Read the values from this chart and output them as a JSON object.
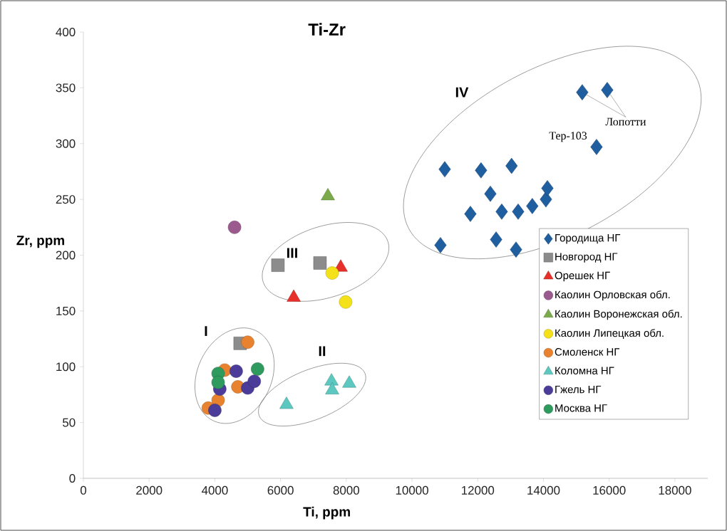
{
  "chart_data": {
    "type": "scatter",
    "title": "Ti-Zr",
    "xlabel": "Ti, ppm",
    "ylabel": "Zr, ppm",
    "xlim": [
      0,
      19000
    ],
    "ylim": [
      0,
      400
    ],
    "xticks": [
      0,
      2000,
      4000,
      6000,
      8000,
      10000,
      12000,
      14000,
      16000,
      18000
    ],
    "yticks": [
      0,
      50,
      100,
      150,
      200,
      250,
      300,
      350,
      400
    ],
    "legend": "bottom right",
    "series": [
      {
        "name": "Городища НГ",
        "marker": "diamond",
        "color": "#1f5fa0",
        "x": [
          10996,
          10865,
          12100,
          11776,
          12384,
          13030,
          12560,
          12730,
          13230,
          13165,
          13660,
          14075,
          14120,
          15615,
          15180,
          15940
        ],
        "values": [
          277,
          209,
          276,
          237,
          255,
          280,
          214,
          239,
          239,
          205,
          244,
          250,
          260,
          297,
          346,
          348
        ]
      },
      {
        "name": "Новгород НГ",
        "marker": "square",
        "color": "#8c8c8c",
        "x": [
          4770,
          5920,
          7200
        ],
        "values": [
          121,
          191,
          193
        ]
      },
      {
        "name": "Орешек НГ",
        "marker": "triangle",
        "color": "#e8302a",
        "x": [
          6400,
          7830
        ],
        "values": [
          162,
          189
        ]
      },
      {
        "name": "Каолин Орловская обл.",
        "marker": "circle",
        "color": "#9b5a8e",
        "x": [
          4600
        ],
        "values": [
          225
        ]
      },
      {
        "name": "Каолин Воронежская обл.",
        "marker": "triangle",
        "color": "#7aaa4a",
        "x": [
          7440
        ],
        "values": [
          253
        ]
      },
      {
        "name": "Каолин Липецкая обл.",
        "marker": "circle",
        "color": "#f5e11a",
        "x": [
          7570,
          7980
        ],
        "values": [
          184,
          158
        ]
      },
      {
        "name": "Смоленск НГ",
        "marker": "circle",
        "color": "#e8822e",
        "x": [
          3800,
          4100,
          4300,
          4700,
          5000
        ],
        "values": [
          63,
          70,
          97,
          82,
          122
        ]
      },
      {
        "name": "Коломна НГ",
        "marker": "triangle",
        "color": "#5cc8c0",
        "x": [
          6180,
          7550,
          7570,
          8090
        ],
        "values": [
          66,
          87,
          79,
          85
        ]
      },
      {
        "name": "Гжель НГ",
        "marker": "circle",
        "color": "#4a3c98",
        "x": [
          4000,
          4150,
          4650,
          5000,
          5200
        ],
        "values": [
          61,
          80,
          96,
          81,
          87
        ]
      },
      {
        "name": "Москва НГ",
        "marker": "circle",
        "color": "#2e9a5e",
        "x": [
          4100,
          4100,
          5300
        ],
        "values": [
          94,
          86,
          98
        ]
      }
    ],
    "annotations": [
      "I",
      "II",
      "III",
      "IV",
      {
        "text": "Тер-103",
        "x": 15615,
        "y": 297
      },
      {
        "text": "Лопотти",
        "x": 15940,
        "y": 348
      }
    ]
  }
}
